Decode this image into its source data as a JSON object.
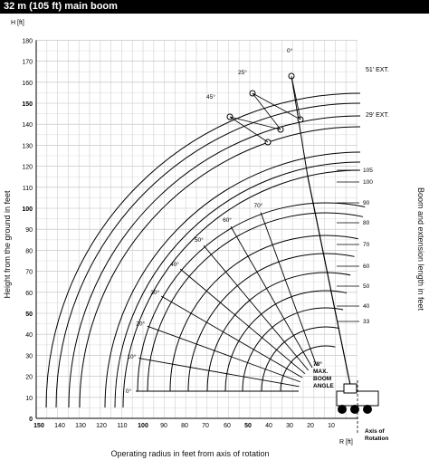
{
  "title": "32 m (105 ft) main boom",
  "y_axis_unit": "H [ft]",
  "x_axis_unit": "R [ft]",
  "y_label": "Height from the ground in feet",
  "x_label": "Operating radius in feet from axis of rotation",
  "right_label": "Boom and extension length in feet",
  "y_ticks": [
    "180",
    "170",
    "160",
    "150",
    "140",
    "130",
    "120",
    "110",
    "100",
    "90",
    "80",
    "70",
    "60",
    "50",
    "40",
    "30",
    "20",
    "10",
    "0"
  ],
  "x_ticks": [
    "150",
    "140",
    "130",
    "120",
    "110",
    "100",
    "90",
    "80",
    "70",
    "60",
    "50",
    "40",
    "30",
    "20",
    "10"
  ],
  "boom_lengths": [
    "105",
    "100",
    "90",
    "80",
    "70",
    "60",
    "50",
    "40",
    "33"
  ],
  "extension_labels": [
    "51' EXT.",
    "29' EXT."
  ],
  "boom_angles": [
    "0°",
    "10°",
    "20°",
    "30°",
    "40°",
    "50°",
    "60°",
    "70°"
  ],
  "extension_angles": [
    "0°",
    "25°",
    "45°"
  ],
  "max_angle_lines": [
    "78°",
    "MAX.",
    "BOOM",
    "ANGLE"
  ],
  "axis_of_rotation_lines": [
    "Axis of",
    "Rotation"
  ]
}
